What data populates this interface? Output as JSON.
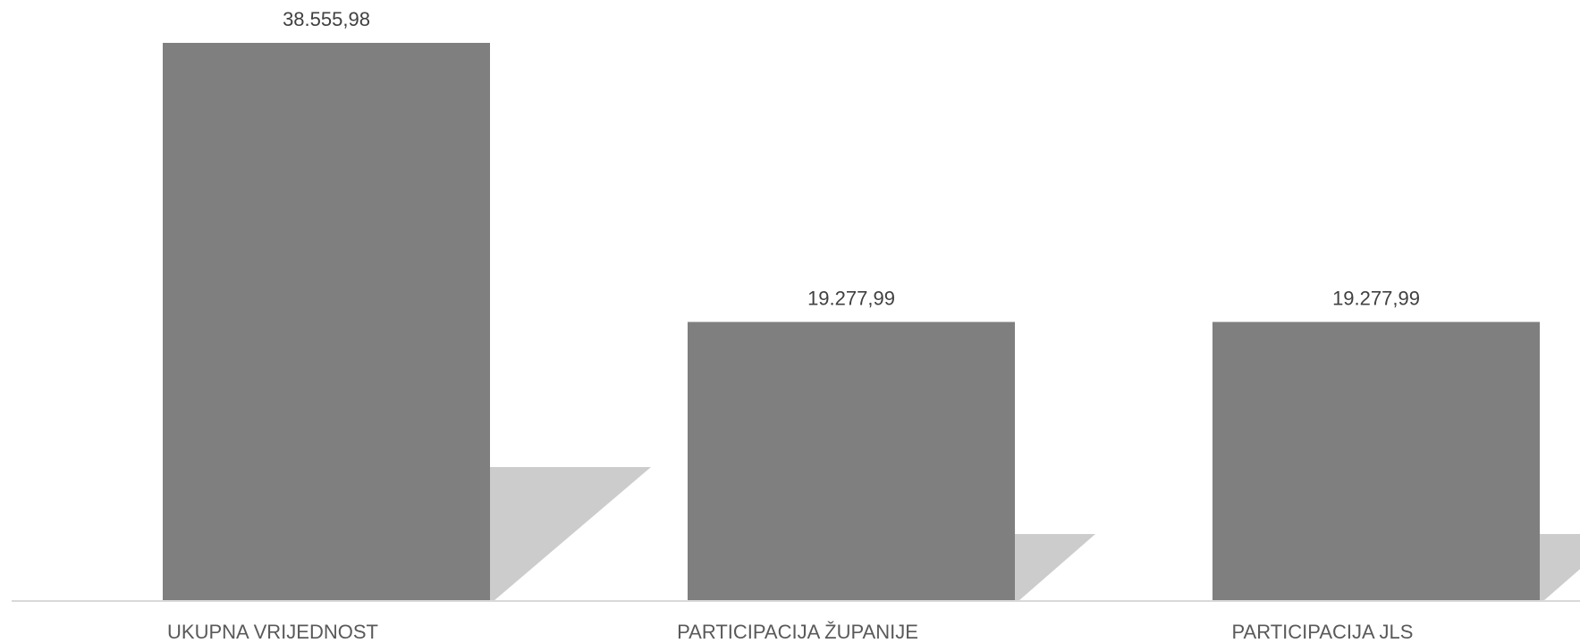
{
  "chart_data": {
    "type": "bar",
    "categories": [
      "UKUPNA VRIJEDNOST",
      "PARTICIPACIJA ŽUPANIJE",
      "PARTICIPACIJA JLS"
    ],
    "values": [
      38555.98,
      19277.99,
      19277.99
    ],
    "data_labels": [
      "38.555,98",
      "19.277,99",
      "19.277,99"
    ],
    "title": "",
    "xlabel": "",
    "ylabel": "",
    "ylim": [
      0,
      38555.98
    ],
    "grid": false,
    "legend": "none",
    "bar_shadow": true,
    "colors": {
      "bar": "#7f7f7f",
      "shadow": "#cccccc",
      "axis": "#d9d9d9",
      "data_label": "#404040",
      "category_label": "#595959"
    }
  }
}
